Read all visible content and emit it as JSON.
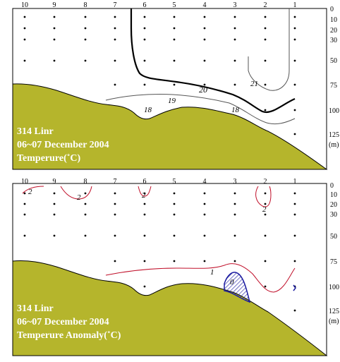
{
  "colors": {
    "terrain": "#b5b52c",
    "contour_temp": "#555555",
    "contour_bold": "#000000",
    "contour_anomaly": "#c0102a",
    "negative_anomaly": "#1a1aa0"
  },
  "stations": [
    "10",
    "9",
    "8",
    "7",
    "6",
    "5",
    "4",
    "3",
    "2",
    "1"
  ],
  "depth_labels": [
    "0",
    "10",
    "20",
    "30",
    "50",
    "75",
    "100",
    "125",
    "(m)"
  ],
  "top": {
    "title_line1": "314 Linr",
    "title_line2": "06~07 December 2004",
    "title_line3": "Temperure(˚C)",
    "contour_labels": [
      "20",
      "21",
      "19",
      "18",
      "18"
    ]
  },
  "bottom": {
    "title_line1": "314 Linr",
    "title_line2": "06~07 December 2004",
    "title_line3": "Temperure Anomaly(˚C)",
    "contour_labels": [
      "2",
      "2",
      "2",
      "2",
      "1",
      "0"
    ]
  }
}
